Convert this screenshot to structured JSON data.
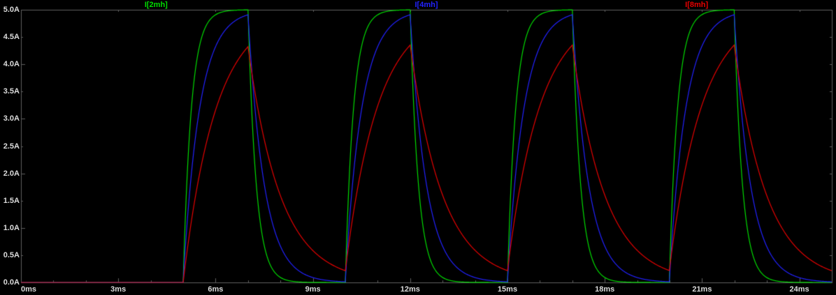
{
  "chart_data": {
    "type": "line",
    "title": "",
    "description": "Transient simulation of inductor currents charging/discharging through repeated voltage pulses; larger inductance gives slower rise and decay.",
    "legend_position": "top",
    "grid": false,
    "colors": {
      "background": "#000000",
      "axis": "#5f5f5f",
      "tick_text": "#dcdcdc"
    },
    "x_axis": {
      "unit": "ms",
      "range_ms": [
        0,
        25
      ],
      "tick_values_ms": [
        0,
        3,
        6,
        9,
        12,
        15,
        18,
        21,
        24
      ],
      "tick_labels": [
        "0ms",
        "3ms",
        "6ms",
        "9ms",
        "12ms",
        "15ms",
        "18ms",
        "21ms",
        "24ms"
      ],
      "minor_tick_step_ms": 1
    },
    "y_axis": {
      "unit": "A",
      "range_A": [
        0,
        5
      ],
      "tick_values_A": [
        5.0,
        4.5,
        4.0,
        3.5,
        3.0,
        2.5,
        2.0,
        1.5,
        1.0,
        0.5,
        0.0
      ],
      "tick_labels": [
        "5.0A",
        "4.5A",
        "4.0A",
        "3.5A",
        "3.0A",
        "2.5A",
        "2.0A",
        "1.5A",
        "1.0A",
        "0.5A",
        "0.0A"
      ]
    },
    "pulse": {
      "start_ms": 5,
      "on_ms": 2,
      "period_ms": 5,
      "count": 4,
      "amplitude_A": 5
    },
    "series": [
      {
        "name": "I[2mh]",
        "color": "#00dc00",
        "tau_ms": 0.25,
        "peak_A": 5.0,
        "min_between_pulses_A": 0.0
      },
      {
        "name": "I[4mh]",
        "color": "#2222ff",
        "tau_ms": 0.5,
        "peak_A": 4.9,
        "min_between_pulses_A": 0.01
      },
      {
        "name": "I[8mh]",
        "color": "#e60000",
        "tau_ms": 1.0,
        "peak_A": 4.35,
        "min_between_pulses_A": 0.22
      }
    ]
  }
}
